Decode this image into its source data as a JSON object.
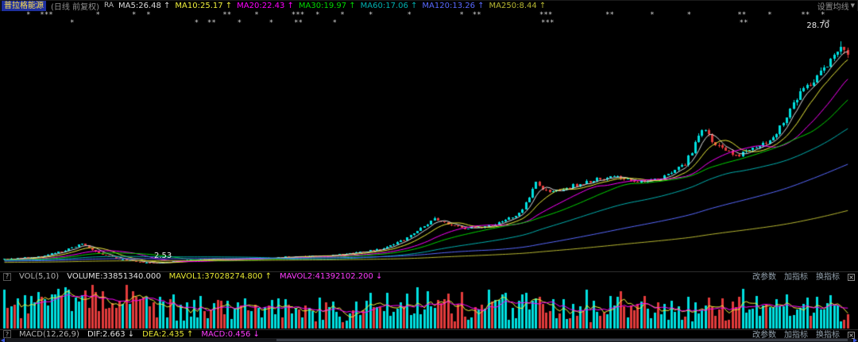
{
  "topbar": {
    "stock_name": "普拉格能源",
    "period": "(日线 前复权)",
    "overlay_tag": "RA",
    "ma_labels": [
      "MA5:26.48 ↑",
      "MA10:25.17 ↑",
      "MA20:22.43 ↑",
      "MA30:19.97 ↑",
      "MA60:17.06 ↑",
      "MA120:13.26 ↑",
      "MA250:8.44 ↑"
    ],
    "settings": "设置均线",
    "settings_arrow": "▼"
  },
  "chart": {
    "high_label": "28.70",
    "low_label": "2.53",
    "markers_row1": [
      {
        "x": "3.1%",
        "t": "*"
      },
      {
        "x": "4.7%",
        "t": "***"
      },
      {
        "x": "11.2%",
        "t": "*"
      },
      {
        "x": "15.4%",
        "t": "*"
      },
      {
        "x": "17.1%",
        "t": "*"
      },
      {
        "x": "26.0%",
        "t": "**"
      },
      {
        "x": "29.7%",
        "t": "*"
      },
      {
        "x": "34.0%",
        "t": "***"
      },
      {
        "x": "36.8%",
        "t": "*"
      },
      {
        "x": "39.7%",
        "t": "*"
      },
      {
        "x": "43.0%",
        "t": "*"
      },
      {
        "x": "47.5%",
        "t": "*"
      },
      {
        "x": "53.6%",
        "t": "*"
      },
      {
        "x": "55.1%",
        "t": "**"
      },
      {
        "x": "62.9%",
        "t": "***"
      },
      {
        "x": "70.6%",
        "t": "**"
      },
      {
        "x": "75.8%",
        "t": "*"
      },
      {
        "x": "80.1%",
        "t": "*"
      },
      {
        "x": "86.0%",
        "t": "**"
      },
      {
        "x": "89.5%",
        "t": "*"
      },
      {
        "x": "93.4%",
        "t": "**"
      },
      {
        "x": "95.7%",
        "t": "*"
      }
    ],
    "markers_row2": [
      {
        "x": "8.2%",
        "t": "*"
      },
      {
        "x": "22.7%",
        "t": "*"
      },
      {
        "x": "24.2%",
        "t": "**"
      },
      {
        "x": "27.7%",
        "t": "*"
      },
      {
        "x": "31.4%",
        "t": "*"
      },
      {
        "x": "34.3%",
        "t": "**"
      },
      {
        "x": "38.8%",
        "t": "*"
      },
      {
        "x": "63.1%",
        "t": "***"
      },
      {
        "x": "86.2%",
        "t": "**"
      },
      {
        "x": "95.8%",
        "t": "**"
      }
    ]
  },
  "chart_data": {
    "type": "candlestick",
    "title": "普拉格能源 日线 前复权",
    "count": 250,
    "ylim": [
      2.2,
      29.8
    ],
    "high_value": 28.7,
    "low_value": 2.53,
    "noise": 0.02,
    "seed": 11,
    "prehistory": {
      "count": 250,
      "start": 2.4,
      "end": 3.0
    },
    "anchors": [
      [
        0,
        3.05
      ],
      [
        10,
        3.35
      ],
      [
        18,
        4.1
      ],
      [
        23,
        4.85
      ],
      [
        27,
        3.9
      ],
      [
        33,
        3.15
      ],
      [
        40,
        2.75
      ],
      [
        45,
        2.55
      ],
      [
        52,
        2.95
      ],
      [
        60,
        3.05
      ],
      [
        70,
        3.1
      ],
      [
        82,
        3.3
      ],
      [
        95,
        3.5
      ],
      [
        105,
        3.9
      ],
      [
        112,
        4.3
      ],
      [
        119,
        5.6
      ],
      [
        124,
        6.9
      ],
      [
        127,
        7.85
      ],
      [
        131,
        7.1
      ],
      [
        136,
        6.75
      ],
      [
        142,
        6.9
      ],
      [
        148,
        7.6
      ],
      [
        152,
        8.4
      ],
      [
        155,
        10.2
      ],
      [
        157,
        12.1
      ],
      [
        160,
        11.0
      ],
      [
        164,
        11.3
      ],
      [
        168,
        11.8
      ],
      [
        172,
        12.1
      ],
      [
        176,
        12.5
      ],
      [
        181,
        12.9
      ],
      [
        186,
        12.2
      ],
      [
        191,
        12.5
      ],
      [
        196,
        13.0
      ],
      [
        201,
        14.2
      ],
      [
        204,
        16.5
      ],
      [
        206,
        18.4
      ],
      [
        209,
        17.0
      ],
      [
        212,
        16.0
      ],
      [
        216,
        15.2
      ],
      [
        220,
        15.9
      ],
      [
        224,
        16.6
      ],
      [
        227,
        17.3
      ],
      [
        230,
        19.0
      ],
      [
        233,
        21.2
      ],
      [
        236,
        23.0
      ],
      [
        239,
        24.3
      ],
      [
        242,
        25.6
      ],
      [
        245,
        27.3
      ],
      [
        247,
        28.2
      ],
      [
        248,
        27.6
      ],
      [
        249,
        26.6
      ]
    ],
    "up_color": "#00dfdf",
    "down_color": "#e23b3b",
    "ma_periods": [
      5,
      10,
      20,
      30,
      60,
      120,
      250
    ],
    "ma_colors": [
      "#dcdcdc",
      "#f0f03c",
      "#ff00ff",
      "#00d800",
      "#00b0b0",
      "#5869ff",
      "#b8b832"
    ],
    "ma_readout": {
      "MA5": 26.48,
      "MA10": 25.17,
      "MA20": 22.43,
      "MA30": 19.97,
      "MA60": 17.06,
      "MA120": 13.26,
      "MA250": 8.44
    },
    "volume": {
      "mavol_periods": [
        5,
        10
      ],
      "mavol_colors": [
        "#f0f03c",
        "#ff00ff"
      ],
      "readout": {
        "VOLUME": 33851340.0,
        "MAVOL1": 37028274.8,
        "MAVOL2": 41392102.2
      }
    },
    "macd_readout": {
      "DIF": 2.663,
      "DEA": 2.435,
      "MACD": 0.456
    }
  },
  "volume_panel": {
    "help_icon": "?",
    "indicator": "VOL(5,10)",
    "volume_label": "VOLUME:33851340.000",
    "mavol1": "MAVOL1:37028274.800 ↑",
    "mavol2": "MAVOL2:41392102.200 ↓",
    "buttons": [
      "改参数",
      "加指标",
      "换指标"
    ],
    "close_icon": "×"
  },
  "macd_panel": {
    "help_icon": "?",
    "indicator": "MACD(12,26,9)",
    "dif": "DIF:2.663 ↓",
    "dea": "DEA:2.435 ↑",
    "macd": "MACD:0.456 ↓",
    "buttons": [
      "改参数",
      "加指标",
      "换指标"
    ],
    "close_icon": "×"
  }
}
